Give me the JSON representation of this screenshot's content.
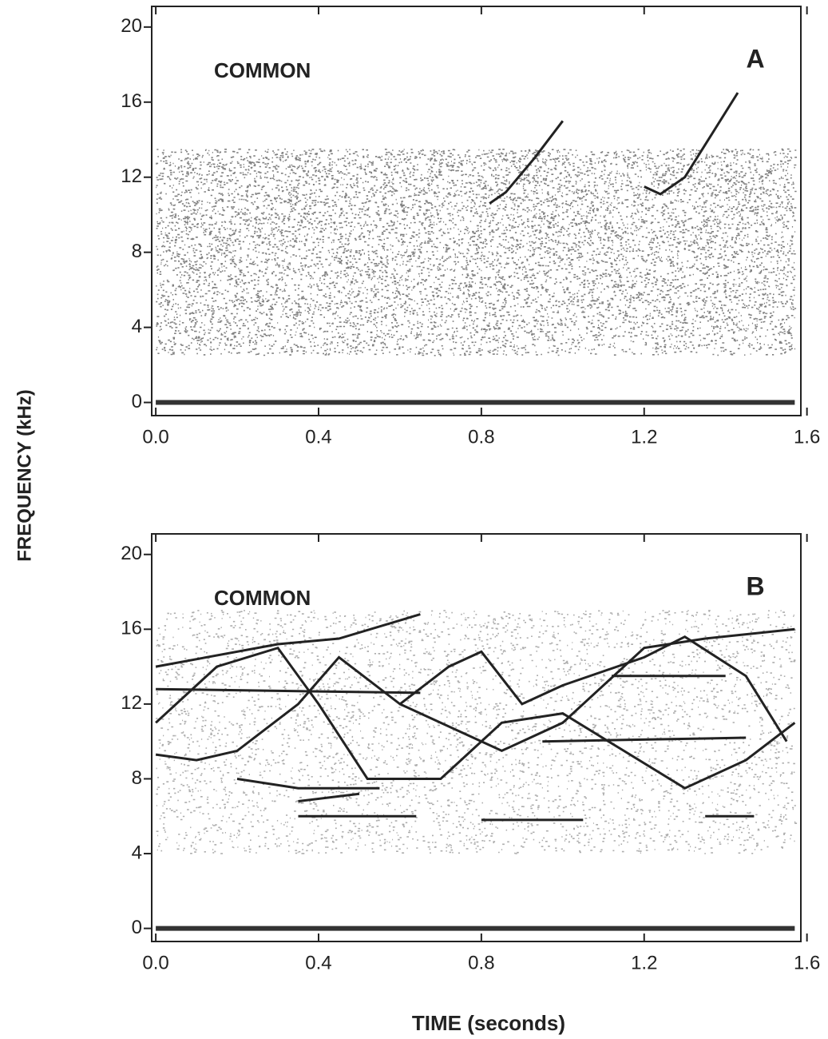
{
  "figure": {
    "xlabel": "TIME (seconds)",
    "ylabel": "FREQUENCY (kHz)"
  },
  "chart_data": [
    {
      "type": "spectrogram",
      "panel": "A",
      "annotation": "COMMON",
      "xlim": [
        -0.01,
        1.585
      ],
      "xticks": [
        {
          "value": 0,
          "label": "0.0"
        },
        0.4,
        0.8,
        1.2,
        1.6
      ],
      "ylim": [
        -0.7,
        21.1
      ],
      "yticks": [
        0,
        4,
        8,
        12,
        16,
        20
      ]
    },
    {
      "type": "spectrogram",
      "panel": "B",
      "annotation": "COMMON",
      "xlim": [
        -0.01,
        1.585
      ],
      "xticks": [
        {
          "value": 0,
          "label": "0.0"
        },
        0.4,
        0.8,
        1.2,
        1.6
      ],
      "ylim": [
        -0.7,
        21.1
      ],
      "yticks": [
        0,
        4,
        8,
        12,
        16,
        20
      ]
    }
  ]
}
